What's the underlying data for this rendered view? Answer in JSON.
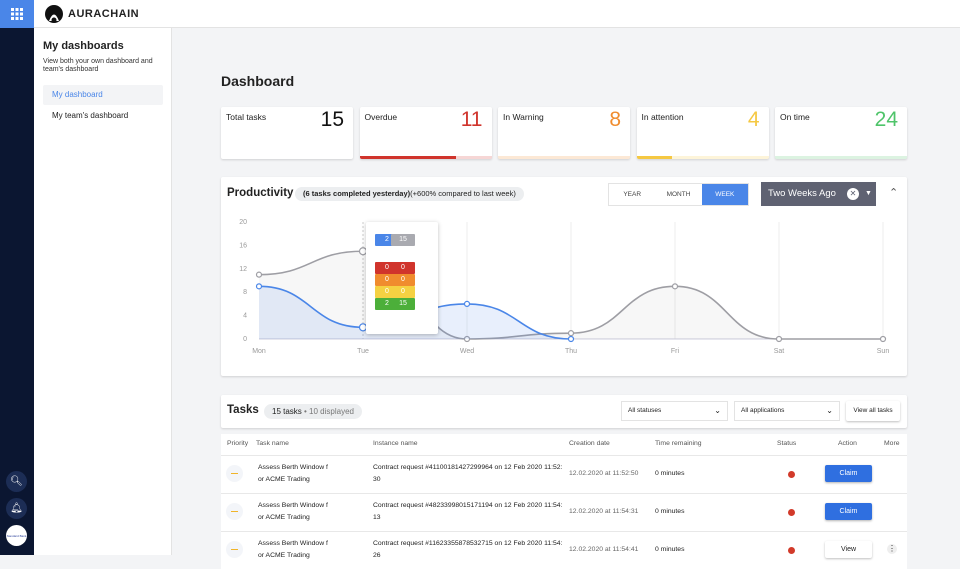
{
  "app": {
    "brand": "AURACHAIN",
    "avatar_text": "Standard Bank"
  },
  "sidebar": {
    "title": "My dashboards",
    "description": "View both your own dashboard and team's dashboard",
    "items": [
      {
        "label": "My dashboard",
        "active": true
      },
      {
        "label": "My team's dashboard",
        "active": false
      }
    ]
  },
  "page": {
    "title": "Dashboard"
  },
  "kpis": [
    {
      "label": "Total tasks",
      "value": "15",
      "color": "#111111"
    },
    {
      "label": "Overdue",
      "value": "11",
      "color": "#d0342c",
      "progress": 0.73
    },
    {
      "label": "In Warning",
      "value": "8",
      "color": "#f08c2e",
      "progress": 0
    },
    {
      "label": "In attention",
      "value": "4",
      "color": "#f5c842",
      "progress": 0.27
    },
    {
      "label": "On time",
      "value": "24",
      "color": "#4fc46a",
      "progress": 0
    }
  ],
  "productivity": {
    "title": "Productivity",
    "summary_bold": "(6 tasks completed yesterday)",
    "summary": "(+600% compared to last week)",
    "periods": [
      "YEAR",
      "MONTH",
      "WEEK"
    ],
    "active_period": "WEEK",
    "range": "Two Weeks Ago"
  },
  "chart_data": {
    "type": "line",
    "categories": [
      "Mon",
      "Tue",
      "Wed",
      "Thu",
      "Fri",
      "Sat",
      "Sun"
    ],
    "ylim": [
      0,
      20
    ],
    "yticks": [
      "0",
      "4",
      "8",
      "12",
      "16",
      "20"
    ],
    "series": [
      {
        "color": "#9e9ea4",
        "values": [
          11,
          15,
          0,
          1,
          9,
          0,
          0
        ]
      },
      {
        "color": "#4a86e8",
        "values": [
          9,
          2,
          6,
          0,
          null,
          null,
          null
        ]
      }
    ],
    "tooltip": {
      "day": "Tue",
      "rows": [
        [
          "2",
          "15"
        ],
        [
          "0",
          "0"
        ],
        [
          "0",
          "0"
        ],
        [
          "0",
          "0"
        ],
        [
          "2",
          "15"
        ]
      ],
      "colors": [
        "#4a86e8",
        "#d0342c",
        "#f08c2e",
        "#f5d142",
        "#4caf3a"
      ],
      "alt_top": "#a9aab0"
    }
  },
  "tasks": {
    "title": "Tasks",
    "count": "15 tasks",
    "displayed": "• 10 displayed",
    "status_filter": "All statuses",
    "app_filter": "All applications",
    "view_all": "View all tasks",
    "columns": [
      "Priority",
      "Task name",
      "Instance name",
      "Creation date",
      "Time remaining",
      "Status",
      "Action",
      "More"
    ],
    "rows": [
      {
        "task": "Assess Berth Window for ACME Trading",
        "instance": "Contract request #41100181427299964 on 12 Feb 2020 11:52:30",
        "created": "12.02.2020 at 11:52:50",
        "remaining": "0 minutes",
        "action": "Claim"
      },
      {
        "task": "Assess Berth Window for ACME Trading",
        "instance": "Contract request #48233998015171194 on 12 Feb 2020 11:54:13",
        "created": "12.02.2020 at 11:54:31",
        "remaining": "0 minutes",
        "action": "Claim"
      },
      {
        "task": "Assess Berth Window for ACME Trading",
        "instance": "Contract request #11623355878532715 on 12 Feb 2020 11:54:26",
        "created": "12.02.2020 at 11:54:41",
        "remaining": "0 minutes",
        "action": "View"
      }
    ]
  }
}
